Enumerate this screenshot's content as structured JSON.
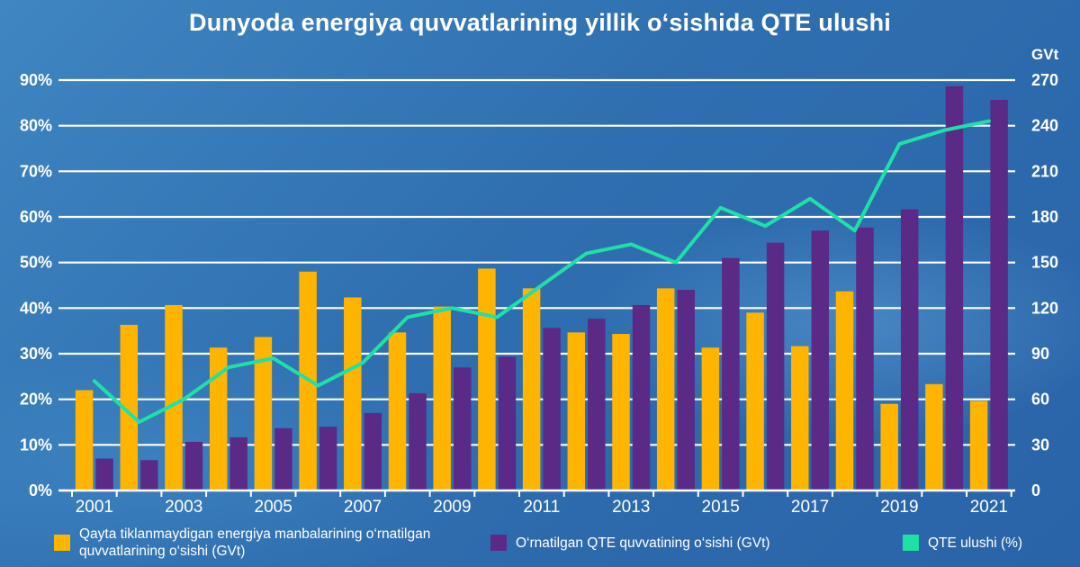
{
  "title": "Dunyoda energiya quvvatlarining yillik o‘sishida QTE ulushi",
  "chart_data": {
    "type": "bar",
    "categories": [
      "2001",
      "2002",
      "2003",
      "2004",
      "2005",
      "2006",
      "2007",
      "2008",
      "2009",
      "2010",
      "2011",
      "2012",
      "2013",
      "2014",
      "2015",
      "2016",
      "2017",
      "2018",
      "2019",
      "2020",
      "2021"
    ],
    "x_tick_labels": [
      "2001",
      "2003",
      "2005",
      "2007",
      "2009",
      "2011",
      "2013",
      "2015",
      "2017",
      "2019",
      "2021"
    ],
    "y_left": {
      "ticks": [
        "0%",
        "10%",
        "20%",
        "30%",
        "40%",
        "50%",
        "60%",
        "70%",
        "80%",
        "90%"
      ],
      "ylim": [
        0,
        90
      ]
    },
    "y_right": {
      "label": "GVt",
      "ticks": [
        "0",
        "30",
        "60",
        "90",
        "120",
        "150",
        "180",
        "210",
        "240",
        "270"
      ],
      "ylim": [
        0,
        270
      ]
    },
    "grid": true,
    "legend_position": "bottom",
    "series": [
      {
        "name": "Qayta tiklanmaydigan energiya manbalarining o‘rnatilgan quvvatlarining o‘sishi (GVt)",
        "type": "bar",
        "axis": "right",
        "color": "#FFB400",
        "values": [
          66,
          109,
          122,
          94,
          101,
          144,
          127,
          104,
          121,
          146,
          133,
          104,
          103,
          133,
          94,
          117,
          95,
          131,
          57,
          70,
          59
        ]
      },
      {
        "name": "O‘rnatilgan QTE quvvatining o‘sishi (GVt)",
        "type": "bar",
        "axis": "right",
        "color": "#5B2A86",
        "values": [
          21,
          20,
          32,
          35,
          41,
          42,
          51,
          64,
          81,
          88,
          107,
          113,
          122,
          132,
          153,
          163,
          171,
          173,
          185,
          266,
          257
        ]
      },
      {
        "name": "QTE ulushi (%)",
        "type": "line",
        "axis": "left",
        "color": "#1FE0A6",
        "values": [
          24,
          15,
          20,
          27,
          29,
          23,
          28,
          38,
          40,
          38,
          45,
          52,
          54,
          50,
          62,
          58,
          64,
          57,
          76,
          79,
          81
        ]
      }
    ]
  }
}
